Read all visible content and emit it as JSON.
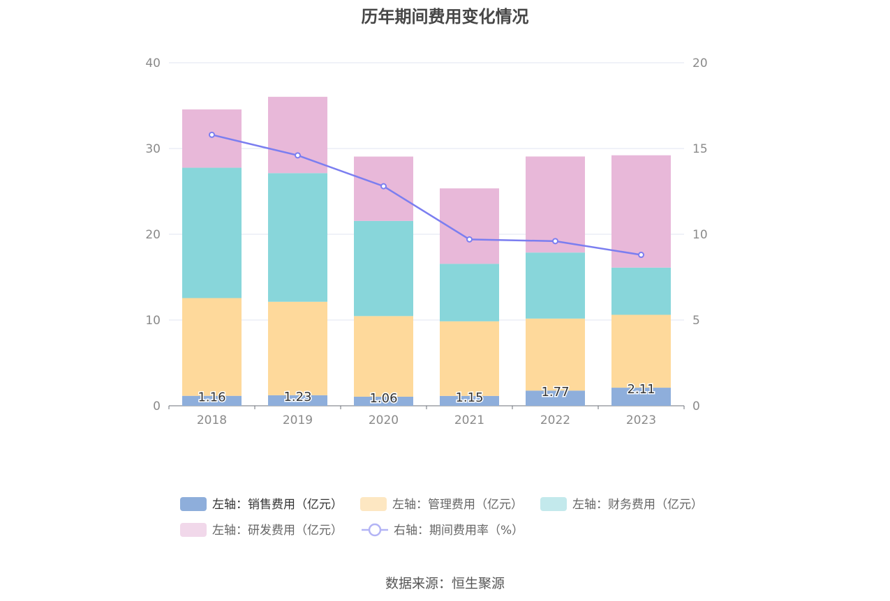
{
  "chart_data": {
    "type": "bar",
    "title": "历年期间费用变化情况",
    "categories": [
      "2018",
      "2019",
      "2020",
      "2021",
      "2022",
      "2023"
    ],
    "series": [
      {
        "name": "左轴：销售费用（亿元）",
        "type": "bar",
        "axis": "left",
        "color": "#8eaedb",
        "values": [
          1.16,
          1.23,
          1.06,
          1.15,
          1.77,
          2.11
        ],
        "show_labels": true
      },
      {
        "name": "左轴：管理费用（亿元）",
        "type": "bar",
        "axis": "left",
        "color": "#fed99b",
        "values": [
          11.4,
          10.9,
          9.4,
          8.7,
          8.4,
          8.5
        ]
      },
      {
        "name": "左轴：财务费用（亿元）",
        "type": "bar",
        "axis": "left",
        "color": "#88d6da",
        "values": [
          15.2,
          15.0,
          11.1,
          6.7,
          7.7,
          5.5
        ]
      },
      {
        "name": "左轴：研发费用（亿元）",
        "type": "bar",
        "axis": "left",
        "color": "#e8b8d9",
        "values": [
          6.8,
          8.9,
          7.5,
          8.8,
          11.2,
          13.1
        ]
      },
      {
        "name": "右轴：期间费用率（%）",
        "type": "line",
        "axis": "right",
        "color": "#7b7ef0",
        "values": [
          15.8,
          14.6,
          12.8,
          9.7,
          9.6,
          8.8
        ]
      }
    ],
    "left_axis": {
      "min": 0,
      "max": 40,
      "ticks": [
        0,
        10,
        20,
        30,
        40
      ]
    },
    "right_axis": {
      "min": 0,
      "max": 20,
      "ticks": [
        0,
        5,
        10,
        15,
        20
      ]
    },
    "grid": true,
    "legend_position": "bottom"
  },
  "source_text": "数据来源：恒生聚源"
}
